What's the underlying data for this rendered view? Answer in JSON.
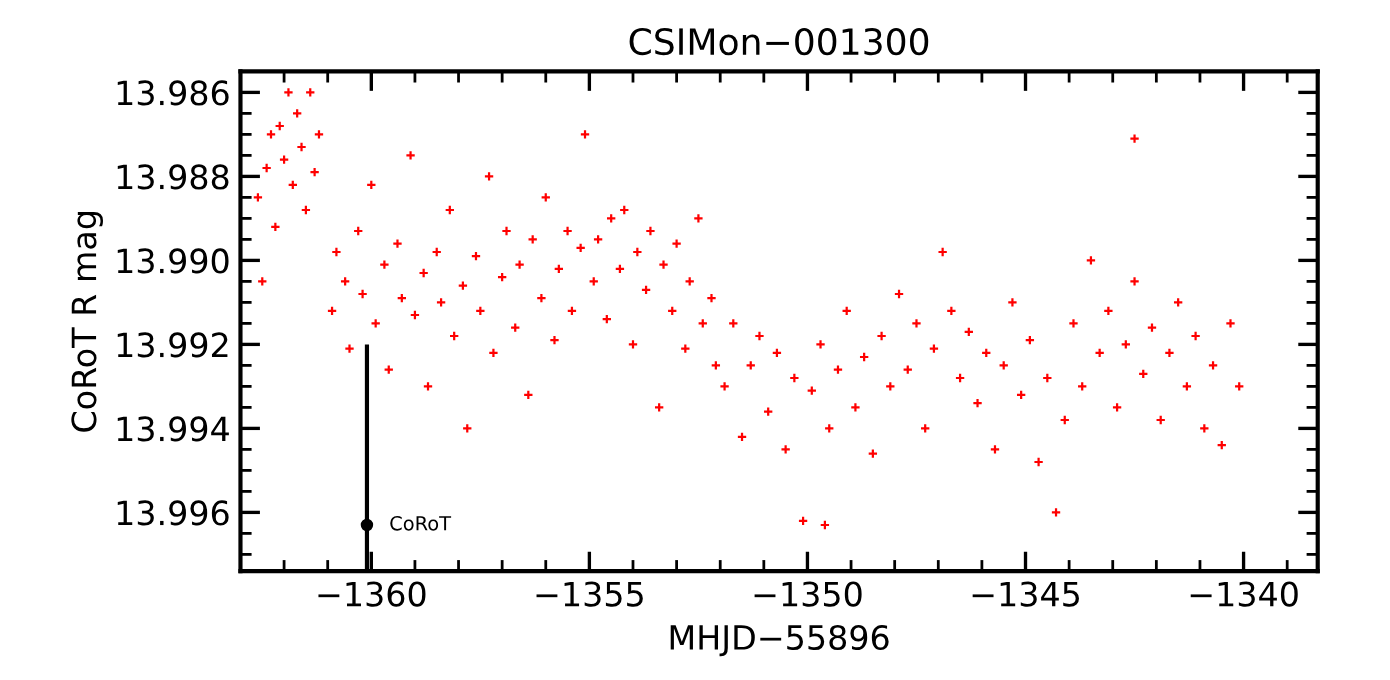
{
  "chart_data": {
    "type": "scatter",
    "title": "CSIMon−001300",
    "xlabel": "MHJD−55896",
    "ylabel": "CoRoT R mag",
    "xlim": [
      -1363.0,
      -1338.3
    ],
    "ylim": [
      13.9974,
      13.9855
    ],
    "xticks": [
      {
        "value": -1360,
        "label": "−1360"
      },
      {
        "value": -1355,
        "label": "−1355"
      },
      {
        "value": -1350,
        "label": "−1350"
      },
      {
        "value": -1345,
        "label": "−1345"
      },
      {
        "value": -1340,
        "label": "−1340"
      }
    ],
    "yticks": [
      13.986,
      13.988,
      {
        "value": 13.99,
        "label": "13.990"
      },
      13.992,
      13.994,
      13.996
    ],
    "grid": false,
    "marker": "cross",
    "series": [
      {
        "color": "#ff0000",
        "x": [
          -1362.6,
          -1362.5,
          -1362.4,
          -1362.3,
          -1362.2,
          -1362.1,
          -1362.0,
          -1361.9,
          -1361.8,
          -1361.7,
          -1361.6,
          -1361.5,
          -1361.4,
          -1361.3,
          -1361.2,
          -1360.9,
          -1360.8,
          -1360.6,
          -1360.5,
          -1360.3,
          -1360.2,
          -1360.0,
          -1359.9,
          -1359.7,
          -1359.6,
          -1359.4,
          -1359.3,
          -1359.1,
          -1359.0,
          -1358.8,
          -1358.7,
          -1358.5,
          -1358.4,
          -1358.2,
          -1358.1,
          -1357.9,
          -1357.8,
          -1357.6,
          -1357.5,
          -1357.3,
          -1357.2,
          -1357.0,
          -1356.9,
          -1356.7,
          -1356.6,
          -1356.4,
          -1356.3,
          -1356.1,
          -1356.0,
          -1355.8,
          -1355.7,
          -1355.5,
          -1355.4,
          -1355.2,
          -1355.1,
          -1354.9,
          -1354.8,
          -1354.6,
          -1354.5,
          -1354.3,
          -1354.2,
          -1354.0,
          -1353.9,
          -1353.7,
          -1353.6,
          -1353.4,
          -1353.3,
          -1353.1,
          -1353.0,
          -1352.8,
          -1352.7,
          -1352.5,
          -1352.4,
          -1352.2,
          -1352.1,
          -1351.9,
          -1351.7,
          -1351.5,
          -1351.3,
          -1351.1,
          -1350.9,
          -1350.7,
          -1350.5,
          -1350.3,
          -1350.1,
          -1349.9,
          -1349.7,
          -1349.5,
          -1349.3,
          -1349.1,
          -1348.9,
          -1348.7,
          -1348.5,
          -1348.3,
          -1348.1,
          -1347.9,
          -1347.7,
          -1347.5,
          -1347.3,
          -1347.1,
          -1346.9,
          -1346.7,
          -1346.5,
          -1346.3,
          -1346.1,
          -1345.9,
          -1345.7,
          -1345.5,
          -1345.3,
          -1345.1,
          -1344.9,
          -1344.7,
          -1344.5,
          -1344.3,
          -1344.1,
          -1343.9,
          -1343.7,
          -1343.5,
          -1343.3,
          -1343.1,
          -1342.9,
          -1342.7,
          -1342.5,
          -1342.3,
          -1342.1,
          -1341.9,
          -1341.7,
          -1341.5,
          -1341.3,
          -1341.1,
          -1340.9,
          -1340.7,
          -1340.5,
          -1340.3,
          -1340.1,
          -1342.5,
          -1349.6
        ],
        "values": [
          13.9885,
          13.9905,
          13.9878,
          13.987,
          13.9892,
          13.9868,
          13.9876,
          13.986,
          13.9882,
          13.9865,
          13.9873,
          13.9888,
          13.986,
          13.9879,
          13.987,
          13.9912,
          13.9898,
          13.9905,
          13.9921,
          13.9893,
          13.9908,
          13.9882,
          13.9915,
          13.9901,
          13.9926,
          13.9896,
          13.9909,
          13.9875,
          13.9913,
          13.9903,
          13.993,
          13.9898,
          13.991,
          13.9888,
          13.9918,
          13.9906,
          13.994,
          13.9899,
          13.9912,
          13.988,
          13.9922,
          13.9904,
          13.9893,
          13.9916,
          13.9901,
          13.9932,
          13.9895,
          13.9909,
          13.9885,
          13.9919,
          13.9902,
          13.9893,
          13.9912,
          13.9897,
          13.987,
          13.9905,
          13.9895,
          13.9914,
          13.989,
          13.9902,
          13.9888,
          13.992,
          13.9898,
          13.9907,
          13.9893,
          13.9935,
          13.9901,
          13.9912,
          13.9896,
          13.9921,
          13.9905,
          13.989,
          13.9915,
          13.9909,
          13.9925,
          13.993,
          13.9915,
          13.9942,
          13.9925,
          13.9918,
          13.9936,
          13.9922,
          13.9945,
          13.9928,
          13.9962,
          13.9931,
          13.992,
          13.994,
          13.9926,
          13.9912,
          13.9935,
          13.9923,
          13.9946,
          13.9918,
          13.993,
          13.9908,
          13.9926,
          13.9915,
          13.994,
          13.9921,
          13.9898,
          13.9912,
          13.9928,
          13.9917,
          13.9934,
          13.9922,
          13.9945,
          13.9925,
          13.991,
          13.9932,
          13.9919,
          13.9948,
          13.9928,
          13.996,
          13.9938,
          13.9915,
          13.993,
          13.99,
          13.9922,
          13.9912,
          13.9935,
          13.992,
          13.9905,
          13.9927,
          13.9916,
          13.9938,
          13.9922,
          13.991,
          13.993,
          13.9918,
          13.994,
          13.9925,
          13.9944,
          13.9915,
          13.993,
          13.9871,
          13.9963
        ]
      },
      {
        "color": "#000000",
        "marker": "circle",
        "x": [
          -1360.1
        ],
        "values": [
          13.9963
        ],
        "errors": [
          [
            13.992,
            13.9974
          ]
        ]
      }
    ],
    "annotations": [
      {
        "text": "CoRoT",
        "x": -1360.1,
        "y": 13.9963
      }
    ]
  }
}
